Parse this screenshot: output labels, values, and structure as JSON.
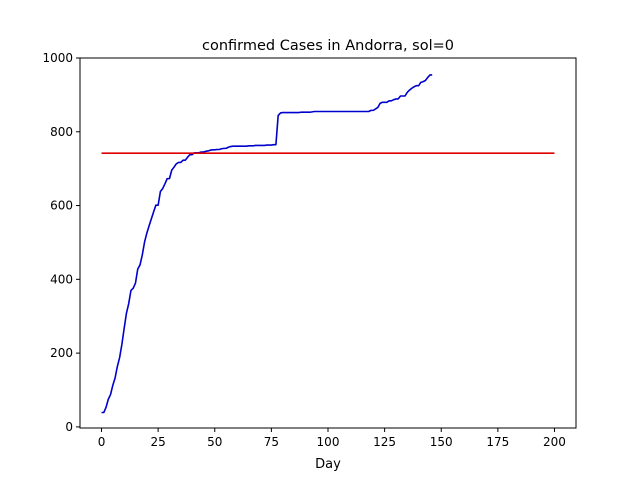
{
  "chart_data": {
    "type": "line",
    "title": "confirmed Cases in Andorra, sol=0",
    "xlabel": "Day",
    "ylabel": "",
    "xlim": [
      -9.5,
      209.5
    ],
    "ylim": [
      -3,
      1000
    ],
    "xticks": [
      0,
      25,
      50,
      75,
      100,
      125,
      150,
      175,
      200
    ],
    "yticks": [
      0,
      200,
      400,
      600,
      800,
      1000
    ],
    "grid": false,
    "legend": "none",
    "series": [
      {
        "color": "#0000cc",
        "points": [
          [
            0,
            39
          ],
          [
            1,
            39
          ],
          [
            2,
            53
          ],
          [
            3,
            75
          ],
          [
            4,
            88
          ],
          [
            5,
            113
          ],
          [
            6,
            133
          ],
          [
            7,
            164
          ],
          [
            8,
            188
          ],
          [
            9,
            224
          ],
          [
            10,
            267
          ],
          [
            11,
            308
          ],
          [
            12,
            334
          ],
          [
            13,
            370
          ],
          [
            14,
            376
          ],
          [
            15,
            390
          ],
          [
            16,
            428
          ],
          [
            17,
            439
          ],
          [
            18,
            466
          ],
          [
            19,
            501
          ],
          [
            20,
            525
          ],
          [
            21,
            545
          ],
          [
            22,
            564
          ],
          [
            23,
            583
          ],
          [
            24,
            601
          ],
          [
            25,
            601
          ],
          [
            26,
            638
          ],
          [
            27,
            646
          ],
          [
            28,
            659
          ],
          [
            29,
            673
          ],
          [
            30,
            673
          ],
          [
            31,
            696
          ],
          [
            32,
            704
          ],
          [
            33,
            713
          ],
          [
            34,
            717
          ],
          [
            35,
            717
          ],
          [
            36,
            723
          ],
          [
            37,
            723
          ],
          [
            38,
            731
          ],
          [
            39,
            738
          ],
          [
            40,
            738
          ],
          [
            41,
            743
          ],
          [
            42,
            743
          ],
          [
            43,
            743
          ],
          [
            44,
            745
          ],
          [
            45,
            745
          ],
          [
            46,
            747
          ],
          [
            47,
            748
          ],
          [
            48,
            750
          ],
          [
            49,
            751
          ],
          [
            50,
            751
          ],
          [
            51,
            752
          ],
          [
            52,
            752
          ],
          [
            53,
            754
          ],
          [
            54,
            755
          ],
          [
            55,
            755
          ],
          [
            56,
            758
          ],
          [
            57,
            760
          ],
          [
            58,
            761
          ],
          [
            59,
            761
          ],
          [
            60,
            761
          ],
          [
            61,
            761
          ],
          [
            62,
            761
          ],
          [
            63,
            761
          ],
          [
            64,
            761
          ],
          [
            65,
            762
          ],
          [
            66,
            762
          ],
          [
            67,
            762
          ],
          [
            68,
            763
          ],
          [
            69,
            763
          ],
          [
            70,
            763
          ],
          [
            71,
            763
          ],
          [
            72,
            763
          ],
          [
            73,
            764
          ],
          [
            74,
            764
          ],
          [
            75,
            764
          ],
          [
            76,
            765
          ],
          [
            77,
            765
          ],
          [
            78,
            844
          ],
          [
            79,
            851
          ],
          [
            80,
            852
          ],
          [
            81,
            852
          ],
          [
            82,
            852
          ],
          [
            83,
            852
          ],
          [
            84,
            852
          ],
          [
            85,
            852
          ],
          [
            86,
            852
          ],
          [
            87,
            852
          ],
          [
            88,
            853
          ],
          [
            89,
            853
          ],
          [
            90,
            853
          ],
          [
            91,
            853
          ],
          [
            92,
            853
          ],
          [
            93,
            854
          ],
          [
            94,
            855
          ],
          [
            95,
            855
          ],
          [
            100,
            855
          ],
          [
            105,
            855
          ],
          [
            110,
            855
          ],
          [
            115,
            855
          ],
          [
            118,
            855
          ],
          [
            119,
            858
          ],
          [
            120,
            858
          ],
          [
            121,
            862
          ],
          [
            122,
            866
          ],
          [
            123,
            877
          ],
          [
            124,
            880
          ],
          [
            125,
            880
          ],
          [
            126,
            880
          ],
          [
            127,
            884
          ],
          [
            128,
            884
          ],
          [
            129,
            887
          ],
          [
            130,
            889
          ],
          [
            131,
            889
          ],
          [
            132,
            897
          ],
          [
            133,
            897
          ],
          [
            134,
            897
          ],
          [
            135,
            907
          ],
          [
            136,
            913
          ],
          [
            137,
            918
          ],
          [
            138,
            922
          ],
          [
            139,
            925
          ],
          [
            140,
            925
          ],
          [
            141,
            934
          ],
          [
            142,
            936
          ],
          [
            143,
            939
          ],
          [
            144,
            947
          ],
          [
            145,
            954
          ],
          [
            146,
            954
          ]
        ]
      },
      {
        "color": "#dd0000",
        "points": [
          [
            0,
            742
          ],
          [
            200,
            742
          ]
        ]
      }
    ]
  }
}
